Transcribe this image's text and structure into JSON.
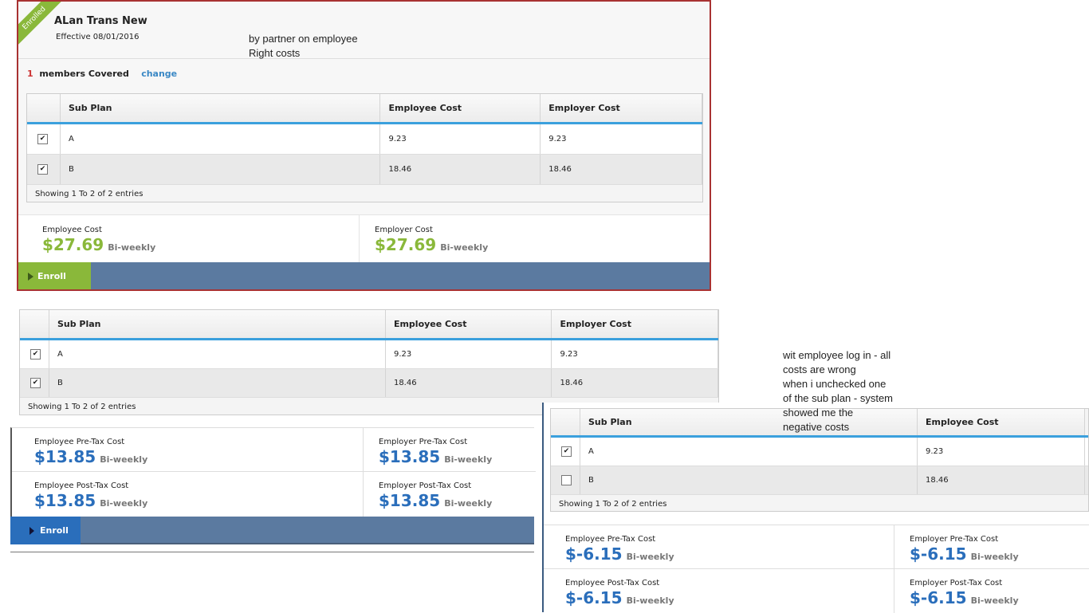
{
  "panel1": {
    "ribbon": "Enrolled",
    "title": "ALan Trans New",
    "effective": "Effective 08/01/2016",
    "members_count": "1",
    "members_label": "members Covered",
    "change": "change",
    "table": {
      "headers": [
        "Sub Plan",
        "Employee Cost",
        "Employer Cost"
      ],
      "rows": [
        {
          "checked": true,
          "cells": [
            "A",
            "9.23",
            "9.23"
          ]
        },
        {
          "checked": true,
          "cells": [
            "B",
            "18.46",
            "18.46"
          ]
        }
      ],
      "footer": "Showing 1 To 2 of 2 entries"
    },
    "costs": [
      {
        "label": "Employee Cost",
        "amount": "$27.69",
        "period": "Bi-weekly"
      },
      {
        "label": "Employer Cost",
        "amount": "$27.69",
        "period": "Bi-weekly"
      }
    ],
    "button": "Enroll"
  },
  "note1": [
    "by partner on employee",
    "Right costs"
  ],
  "panel2": {
    "table": {
      "headers": [
        "Sub Plan",
        "Employee Cost",
        "Employer Cost"
      ],
      "rows": [
        {
          "checked": true,
          "cells": [
            "A",
            "9.23",
            "9.23"
          ]
        },
        {
          "checked": true,
          "cells": [
            "B",
            "18.46",
            "18.46"
          ]
        }
      ],
      "footer": "Showing 1 To 2 of 2 entries"
    },
    "costs": [
      {
        "label": "Employee Pre-Tax Cost",
        "amount": "$13.85",
        "period": "Bi-weekly"
      },
      {
        "label": "Employer Pre-Tax Cost",
        "amount": "$13.85",
        "period": "Bi-weekly"
      },
      {
        "label": "Employee Post-Tax Cost",
        "amount": "$13.85",
        "period": "Bi-weekly"
      },
      {
        "label": "Employer Post-Tax Cost",
        "amount": "$13.85",
        "period": "Bi-weekly"
      }
    ],
    "button": "Enroll"
  },
  "panel3": {
    "table": {
      "headers": [
        "Sub Plan",
        "Employee Cost"
      ],
      "rows": [
        {
          "checked": true,
          "cells": [
            "A",
            "9.23"
          ]
        },
        {
          "checked": false,
          "cells": [
            "B",
            "18.46"
          ]
        }
      ],
      "footer": "Showing 1 To 2 of 2 entries"
    },
    "costs": [
      {
        "label": "Employee Pre-Tax Cost",
        "amount": "$-6.15",
        "period": "Bi-weekly"
      },
      {
        "label": "Employer Pre-Tax Cost",
        "amount": "$-6.15",
        "period": "Bi-weekly"
      },
      {
        "label": "Employee Post-Tax Cost",
        "amount": "$-6.15",
        "period": "Bi-weekly"
      },
      {
        "label": "Employer Post-Tax Cost",
        "amount": "$-6.15",
        "period": "Bi-weekly"
      }
    ]
  },
  "note2": [
    "wit employee log in - all",
    "costs are wrong",
    "when i unchecked one",
    "of the sub plan - system",
    "showed me the",
    "negative costs"
  ]
}
